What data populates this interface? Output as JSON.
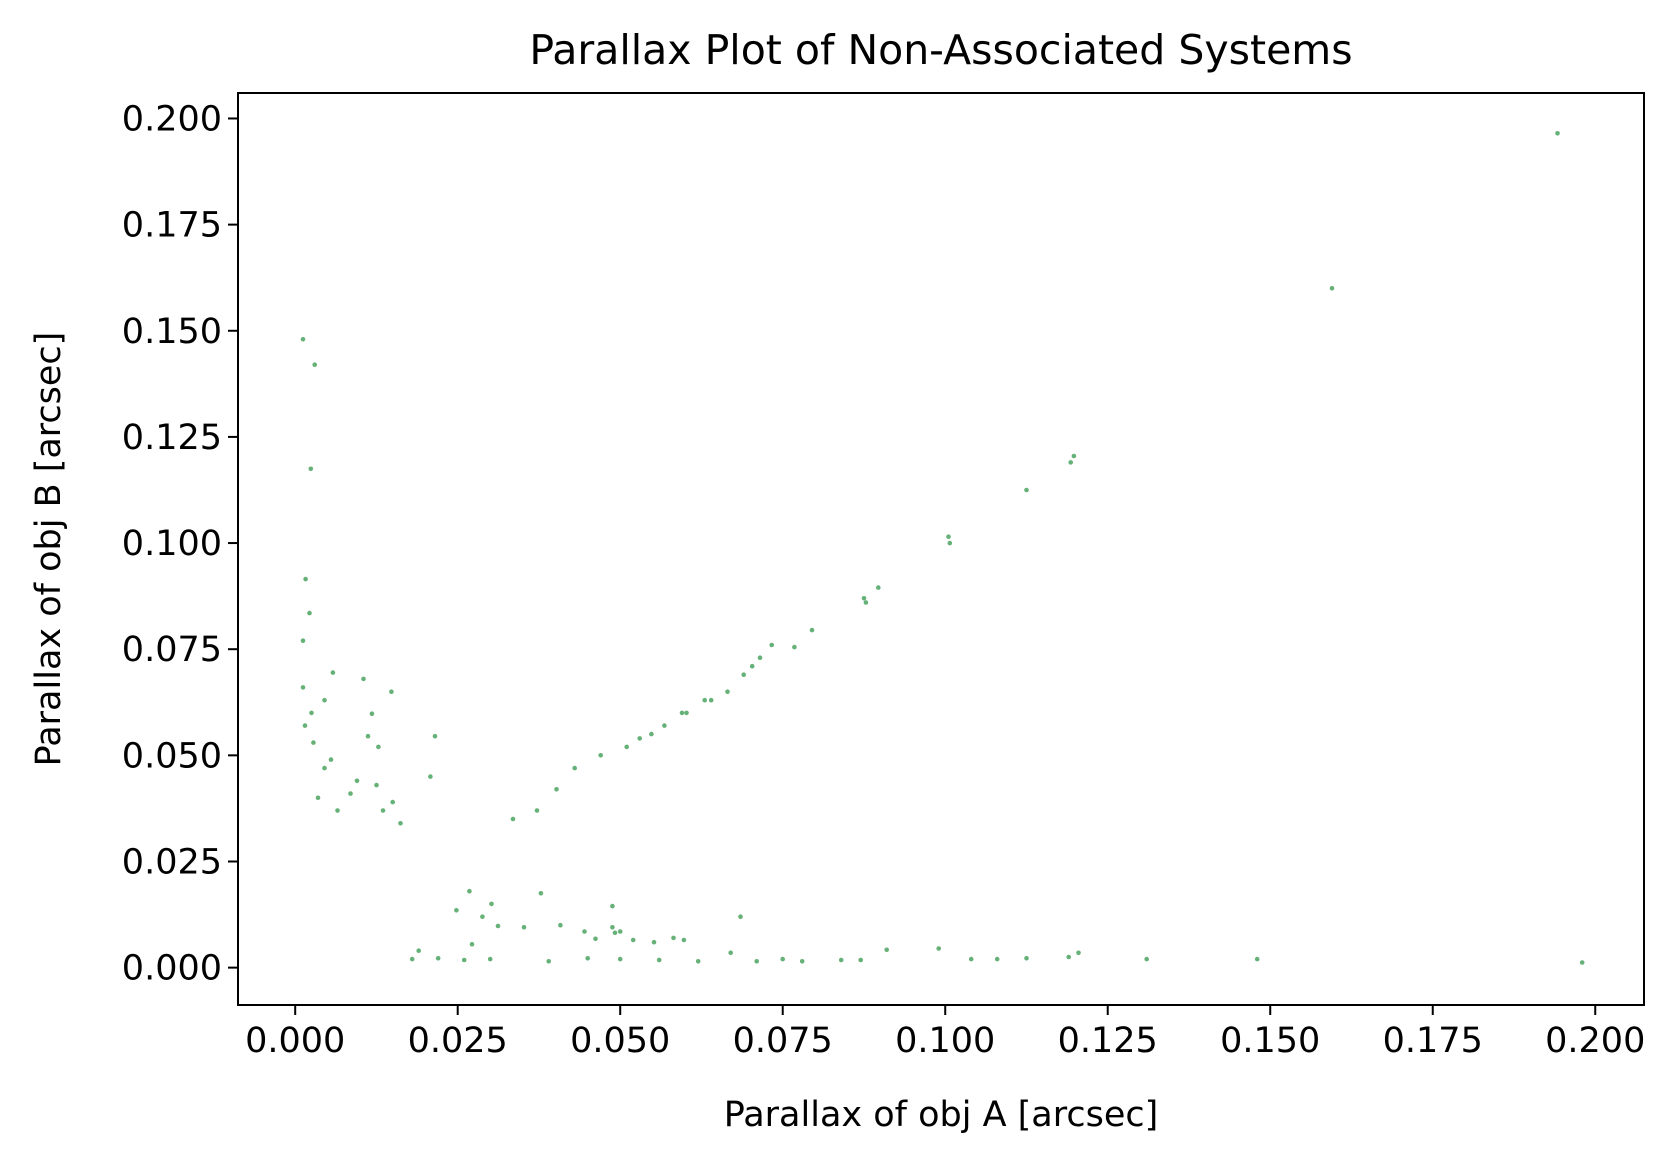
{
  "chart_data": {
    "type": "scatter",
    "title": "Parallax Plot of Non-Associated Systems",
    "xlabel": "Parallax of obj A [arcsec]",
    "ylabel": "Parallax of obj B [arcsec]",
    "xlim": [
      -0.0088,
      0.2075
    ],
    "ylim": [
      -0.0088,
      0.206
    ],
    "xticks": [
      "0.000",
      "0.025",
      "0.050",
      "0.075",
      "0.100",
      "0.125",
      "0.150",
      "0.175",
      "0.200"
    ],
    "yticks": [
      "0.000",
      "0.025",
      "0.050",
      "0.075",
      "0.100",
      "0.125",
      "0.150",
      "0.175",
      "0.200"
    ],
    "grid": false,
    "point_color": "#55a868",
    "series": [
      {
        "x": [
          0.0012,
          0.003,
          0.0024,
          0.0016,
          0.0022,
          0.0012,
          0.0012,
          0.0058,
          0.0105,
          0.0148,
          0.0045,
          0.0025,
          0.0118,
          0.0015,
          0.0028,
          0.0112,
          0.0215,
          0.0128,
          0.0208,
          0.0055,
          0.0045,
          0.0125,
          0.0095,
          0.0135,
          0.015,
          0.0162,
          0.0085,
          0.0035,
          0.0065,
          0.0335,
          0.0372,
          0.0402,
          0.043,
          0.047,
          0.051,
          0.053,
          0.0548,
          0.0568,
          0.0595,
          0.0602,
          0.063,
          0.064,
          0.0665,
          0.069,
          0.0703,
          0.0715,
          0.0733,
          0.0768,
          0.0795,
          0.0875,
          0.0878,
          0.0897,
          0.1005,
          0.1007,
          0.1125,
          0.1193,
          0.1198,
          0.1595,
          0.1942,
          0.018,
          0.022,
          0.026,
          0.03,
          0.039,
          0.045,
          0.05,
          0.056,
          0.062,
          0.067,
          0.071,
          0.075,
          0.078,
          0.084,
          0.087,
          0.091,
          0.099,
          0.104,
          0.108,
          0.1125,
          0.119,
          0.1205,
          0.131,
          0.148,
          0.198,
          0.0492,
          0.05,
          0.0488,
          0.0445,
          0.0378,
          0.0312,
          0.0288,
          0.0552,
          0.0598,
          0.0582,
          0.0685,
          0.0408,
          0.0302,
          0.0268,
          0.0248,
          0.019,
          0.0272,
          0.0352,
          0.0462,
          0.0488,
          0.052
        ],
        "y": [
          0.148,
          0.142,
          0.1175,
          0.0915,
          0.0835,
          0.077,
          0.066,
          0.0695,
          0.068,
          0.065,
          0.063,
          0.06,
          0.0598,
          0.057,
          0.053,
          0.0545,
          0.0545,
          0.052,
          0.045,
          0.049,
          0.047,
          0.043,
          0.044,
          0.037,
          0.039,
          0.034,
          0.041,
          0.04,
          0.037,
          0.035,
          0.037,
          0.042,
          0.047,
          0.05,
          0.052,
          0.054,
          0.055,
          0.057,
          0.06,
          0.06,
          0.063,
          0.063,
          0.065,
          0.069,
          0.071,
          0.073,
          0.076,
          0.0755,
          0.0795,
          0.087,
          0.086,
          0.0895,
          0.1015,
          0.1,
          0.1125,
          0.119,
          0.1205,
          0.16,
          0.1965,
          0.002,
          0.0022,
          0.0018,
          0.002,
          0.0015,
          0.0022,
          0.002,
          0.0018,
          0.0015,
          0.0035,
          0.0015,
          0.002,
          0.0015,
          0.0018,
          0.0018,
          0.0042,
          0.0045,
          0.002,
          0.002,
          0.0022,
          0.0025,
          0.0035,
          0.002,
          0.002,
          0.0012,
          0.0082,
          0.0085,
          0.0145,
          0.0085,
          0.0175,
          0.0098,
          0.012,
          0.006,
          0.0065,
          0.007,
          0.012,
          0.01,
          0.015,
          0.018,
          0.0135,
          0.004,
          0.0055,
          0.0095,
          0.0068,
          0.0095,
          0.0065
        ]
      }
    ]
  }
}
